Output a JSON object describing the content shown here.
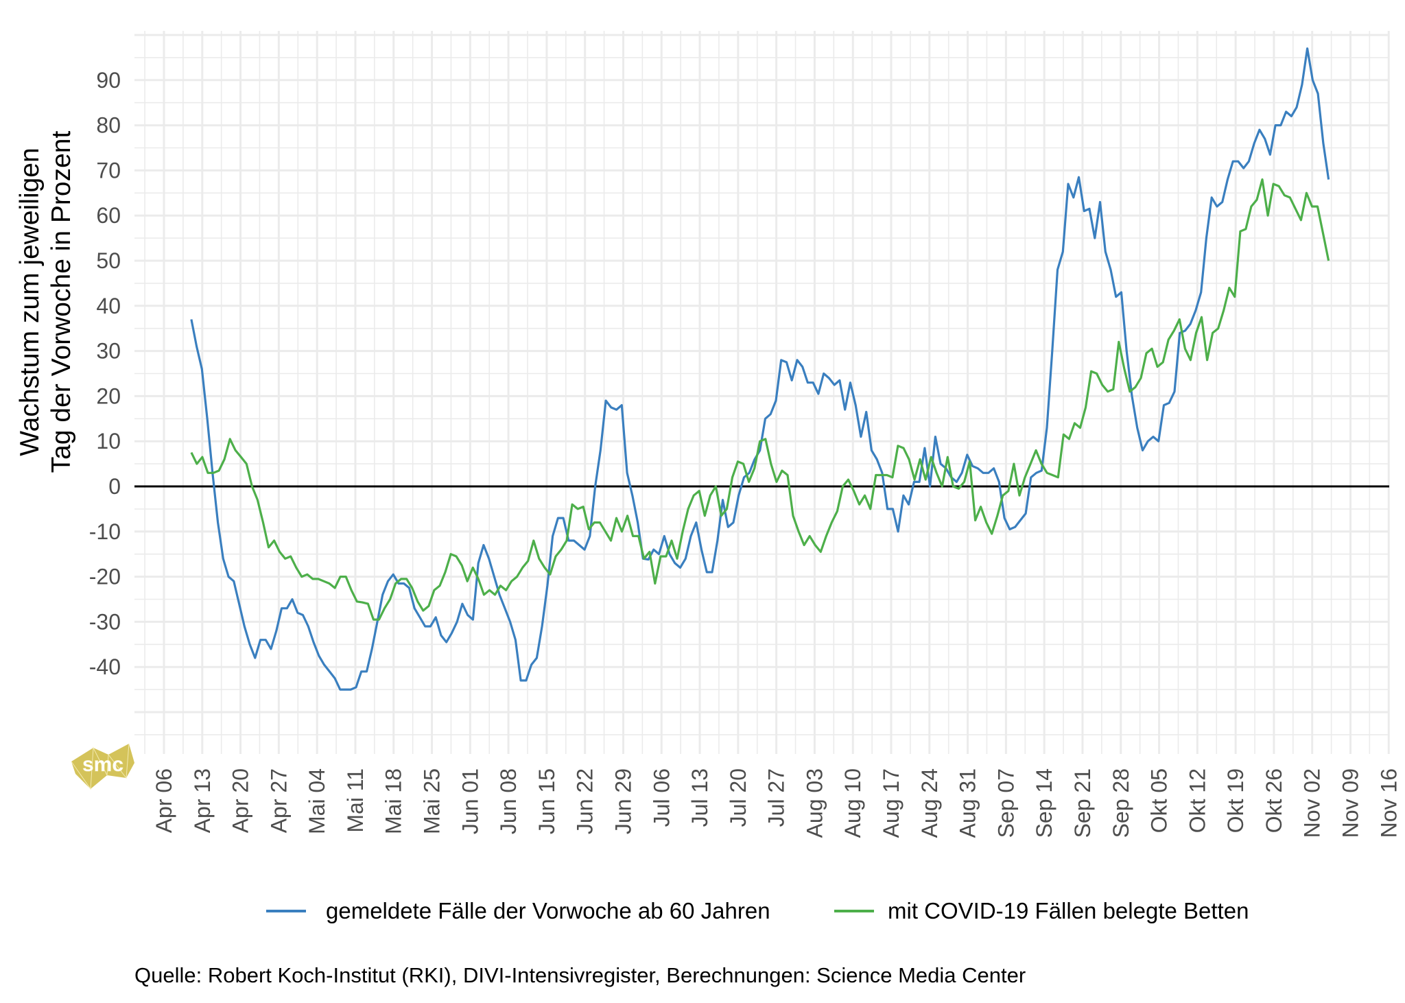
{
  "chart_data": {
    "type": "line",
    "title": "",
    "ylabel_lines": [
      "Wachstum zum jeweiligen",
      "Tag der Vorwoche in Prozent"
    ],
    "xlabel": "",
    "x_start_date": "Apr 11",
    "x_end_date": "Nov 05",
    "ylim": [
      -58,
      101
    ],
    "yticks": [
      -40,
      -30,
      -20,
      -10,
      0,
      10,
      20,
      30,
      40,
      50,
      60,
      70,
      80,
      90
    ],
    "xtick_labels": [
      "Apr 06",
      "Apr 13",
      "Apr 20",
      "Apr 27",
      "Mai 04",
      "Mai 11",
      "Mai 18",
      "Mai 25",
      "Jun 01",
      "Jun 08",
      "Jun 15",
      "Jun 22",
      "Jun 29",
      "Jul 06",
      "Jul 13",
      "Jul 20",
      "Jul 27",
      "Aug 03",
      "Aug 10",
      "Aug 17",
      "Aug 24",
      "Aug 31",
      "Sep 07",
      "Sep 14",
      "Sep 21",
      "Sep 28",
      "Okt 05",
      "Okt 12",
      "Okt 19",
      "Okt 26",
      "Nov 02",
      "Nov 09",
      "Nov 16"
    ],
    "grid": true,
    "reference_line": 0,
    "legend_position": "bottom",
    "series": [
      {
        "name": "gemeldete Fälle der Vorwoche ab 60 Jahren",
        "color": "#3a7fbf",
        "values": [
          37,
          31,
          26,
          15,
          3,
          -8,
          -16,
          -20,
          -21,
          -26,
          -31,
          -35,
          -38,
          -34,
          -34,
          -36,
          -32,
          -27,
          -27,
          -25,
          -28,
          -28.5,
          -31,
          -34.5,
          -37.5,
          -39.5,
          -41,
          -42.5,
          -45,
          -45,
          -45,
          -44.5,
          -41,
          -41,
          -36,
          -30,
          -24,
          -21,
          -19.5,
          -21.5,
          -21.5,
          -22.5,
          -27,
          -29,
          -31,
          -31,
          -29,
          -33,
          -34.5,
          -32.5,
          -30,
          -26,
          -28.5,
          -29.5,
          -17,
          -13,
          -16,
          -20,
          -24,
          -27,
          -30,
          -34,
          -43,
          -43,
          -39.5,
          -38,
          -31,
          -22,
          -11,
          -7,
          -7,
          -12,
          -12,
          -13,
          -14,
          -11,
          0,
          8,
          19,
          17.5,
          17,
          18,
          3,
          -2,
          -8,
          -16,
          -16.2,
          -14,
          -15,
          -11,
          -15,
          -17,
          -18,
          -16,
          -11,
          -8,
          -14,
          -19,
          -19,
          -12,
          -3,
          -9,
          -8,
          -2,
          2,
          3,
          6,
          8,
          15,
          16,
          19,
          28,
          27.5,
          23.5,
          28,
          26.5,
          23,
          23,
          20.5,
          25,
          24,
          22.5,
          23.5,
          17,
          23,
          18,
          11,
          16.5,
          8,
          6,
          3,
          -5,
          -5,
          -10,
          -2,
          -4,
          1,
          1,
          8.5,
          0,
          11,
          5,
          4,
          2,
          1,
          3,
          7,
          4.5,
          4,
          3,
          3,
          4,
          1,
          -7,
          -9.5,
          -9,
          -7.5,
          -6,
          2,
          3,
          3.5,
          13,
          30,
          48,
          52,
          67,
          64,
          68.5,
          61,
          61.5,
          55,
          63,
          52,
          48,
          42,
          43,
          30,
          20,
          13,
          8,
          10,
          11,
          10,
          18,
          18.5,
          21,
          34,
          34.5,
          36,
          39,
          43,
          55,
          64,
          62,
          63,
          68,
          72,
          72,
          70.5,
          72,
          76,
          79,
          77,
          73.5,
          80,
          80,
          83,
          82,
          84,
          89,
          97,
          90,
          87,
          76,
          68
        ]
      },
      {
        "name": "mit COVID-19 Fällen belegte Betten",
        "color": "#4daf4a",
        "values": [
          7.5,
          5,
          6.5,
          3,
          3,
          3.5,
          6,
          10.5,
          8,
          6.5,
          5,
          0,
          -3,
          -8,
          -13.5,
          -12,
          -14.5,
          -16,
          -15.5,
          -18,
          -20,
          -19.5,
          -20.5,
          -20.5,
          -21,
          -21.5,
          -22.5,
          -20,
          -20,
          -23,
          -25.5,
          -25.7,
          -26,
          -29.5,
          -29.5,
          -27,
          -25,
          -21.5,
          -20.5,
          -20.5,
          -22.5,
          -25.5,
          -27.5,
          -26.5,
          -23,
          -22,
          -19,
          -15,
          -15.5,
          -17.5,
          -21,
          -18,
          -20.5,
          -24,
          -23,
          -24,
          -22,
          -23,
          -21,
          -20,
          -18,
          -16.5,
          -12,
          -16,
          -18,
          -19.5,
          -15.5,
          -14,
          -12,
          -4,
          -5,
          -4.5,
          -9.5,
          -8,
          -8,
          -10,
          -12,
          -7,
          -10,
          -6.5,
          -11,
          -11,
          -16,
          -14.5,
          -21.5,
          -15.5,
          -15.5,
          -12,
          -16,
          -10,
          -5,
          -2,
          -1,
          -6.5,
          -2,
          0,
          -6.5,
          -5,
          2,
          5.5,
          5,
          1,
          4,
          10,
          10.5,
          5,
          1,
          3.5,
          2.5,
          -6.5,
          -10,
          -13,
          -11,
          -13,
          -14.5,
          -11,
          -8,
          -5.5,
          0,
          1.5,
          -1,
          -4,
          -2,
          -5,
          2.5,
          2.5,
          2.5,
          2,
          9,
          8.5,
          6,
          1.5,
          6,
          1.5,
          6.5,
          3,
          0,
          6.5,
          0,
          -0.5,
          1,
          5.5,
          -7.5,
          -4.5,
          -8,
          -10.5,
          -6.5,
          -2,
          -1,
          5,
          -2,
          2,
          5,
          8,
          5,
          3,
          2.5,
          2,
          11.5,
          10.5,
          14,
          13,
          17.5,
          25.5,
          25,
          22.5,
          21,
          21.5,
          32,
          26,
          21,
          22,
          24,
          29.5,
          30.5,
          26.5,
          27.5,
          32.5,
          34.5,
          37,
          30.5,
          28,
          34,
          37.5,
          28,
          34,
          35,
          39,
          44,
          42,
          56.5,
          57,
          62,
          63.5,
          68,
          60,
          67,
          66.5,
          64.5,
          64,
          61.5,
          59,
          65,
          62,
          62,
          56,
          50
        ]
      }
    ]
  },
  "logo": {
    "text": "smc",
    "color": "#d4c35a"
  },
  "caption": "Quelle: Robert Koch-Institut (RKI), DIVI-Intensivregister, Berechnungen: Science Media Center"
}
